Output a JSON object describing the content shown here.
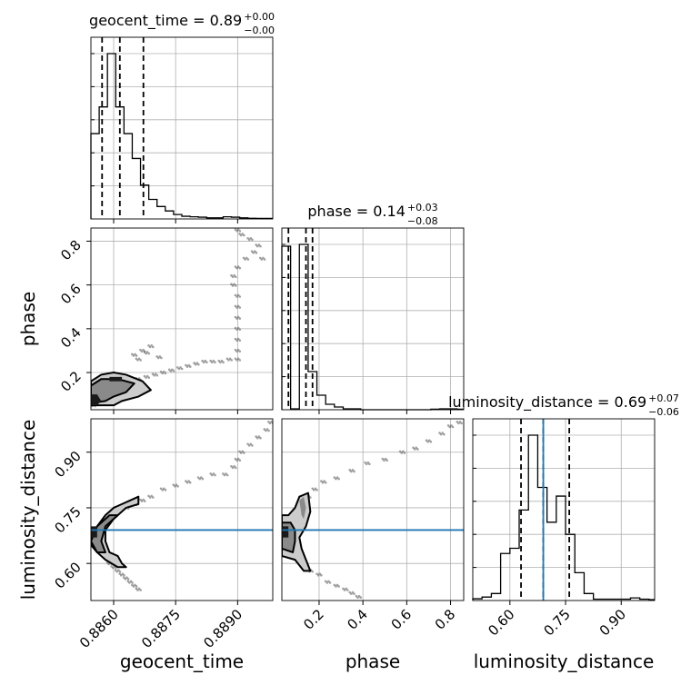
{
  "chart_data": {
    "type": "corner",
    "parameters": [
      "geocent_time",
      "phase",
      "luminosity_distance"
    ],
    "axis_labels": {
      "geocent_time": "geocent_time",
      "phase": "phase",
      "luminosity_distance": "luminosity_distance"
    },
    "titles": [
      {
        "param": "geocent_time",
        "prefix": "geocent_time = ",
        "median": "0.89",
        "upper": "+0.00",
        "lower": "−0.00"
      },
      {
        "param": "phase",
        "prefix": "phase = ",
        "median": "0.14",
        "upper": "+0.03",
        "lower": "−0.08"
      },
      {
        "param": "luminosity_distance",
        "prefix": "luminosity_distance = ",
        "median": "0.69",
        "upper": "+0.07",
        "lower": "−0.06"
      }
    ],
    "ranges": {
      "geocent_time": [
        0.88545,
        0.88985
      ],
      "phase": [
        0.03,
        0.86
      ],
      "luminosity_distance": [
        0.5,
        0.99
      ]
    },
    "ticks": {
      "geocent_time": [
        {
          "v": 0.886,
          "label": "0.8860"
        },
        {
          "v": 0.8875,
          "label": "0.8875"
        },
        {
          "v": 0.889,
          "label": "0.8890"
        }
      ],
      "phase": [
        {
          "v": 0.2,
          "label": "0.2"
        },
        {
          "v": 0.4,
          "label": "0.4"
        },
        {
          "v": 0.6,
          "label": "0.6"
        },
        {
          "v": 0.8,
          "label": "0.8"
        }
      ],
      "luminosity_distance": [
        {
          "v": 0.6,
          "label": "0.60"
        },
        {
          "v": 0.75,
          "label": "0.75"
        },
        {
          "v": 0.9,
          "label": "0.90"
        }
      ]
    },
    "quantiles": {
      "geocent_time": [
        0.88572,
        0.88615,
        0.88672
      ],
      "phase": [
        0.06,
        0.14,
        0.17
      ],
      "luminosity_distance": [
        0.63,
        0.69,
        0.76
      ]
    },
    "truth": {
      "luminosity_distance": 0.69
    },
    "histograms": {
      "geocent_time": {
        "edges": [
          0.88545,
          0.88565,
          0.88585,
          0.88605,
          0.88625,
          0.88645,
          0.88665,
          0.88685,
          0.88705,
          0.88725,
          0.88745,
          0.88765,
          0.88785,
          0.88805,
          0.88825,
          0.88845,
          0.88865,
          0.88885,
          0.88905,
          0.88925,
          0.88945,
          0.88965,
          0.88985
        ],
        "counts": [
          480,
          630,
          930,
          630,
          480,
          340,
          190,
          110,
          70,
          45,
          25,
          15,
          12,
          10,
          6,
          6,
          12,
          10,
          6,
          4,
          3,
          3
        ]
      },
      "phase": {
        "edges": [
          0.03,
          0.07,
          0.11,
          0.15,
          0.19,
          0.23,
          0.27,
          0.31,
          0.35,
          0.39,
          0.43,
          0.47,
          0.51,
          0.55,
          0.59,
          0.63,
          0.67,
          0.71,
          0.75,
          0.79,
          0.83,
          0.86
        ],
        "counts": [
          900,
          5,
          910,
          210,
          80,
          30,
          15,
          5,
          5,
          0,
          0,
          0,
          0,
          0,
          0,
          0,
          0,
          3,
          5,
          5,
          3
        ]
      },
      "luminosity_distance": {
        "edges": [
          0.5,
          0.525,
          0.55,
          0.575,
          0.6,
          0.625,
          0.65,
          0.675,
          0.7,
          0.725,
          0.75,
          0.775,
          0.8,
          0.825,
          0.85,
          0.875,
          0.9,
          0.925,
          0.95,
          0.975,
          0.99
        ],
        "counts": [
          10,
          20,
          40,
          270,
          300,
          520,
          950,
          650,
          450,
          600,
          380,
          160,
          40,
          8,
          8,
          8,
          8,
          15,
          8,
          5
        ]
      }
    },
    "scatter": {
      "geocent_time__phase": [
        [
          0.8855,
          0.05
        ],
        [
          0.8856,
          0.06
        ],
        [
          0.8857,
          0.08
        ],
        [
          0.8858,
          0.1
        ],
        [
          0.8859,
          0.12
        ],
        [
          0.886,
          0.13
        ],
        [
          0.8861,
          0.14
        ],
        [
          0.8862,
          0.15
        ],
        [
          0.8863,
          0.16
        ],
        [
          0.8864,
          0.16
        ],
        [
          0.8866,
          0.17
        ],
        [
          0.8868,
          0.18
        ],
        [
          0.887,
          0.19
        ],
        [
          0.8872,
          0.2
        ],
        [
          0.8874,
          0.21
        ],
        [
          0.8876,
          0.22
        ],
        [
          0.8878,
          0.23
        ],
        [
          0.888,
          0.24
        ],
        [
          0.8882,
          0.25
        ],
        [
          0.8884,
          0.25
        ],
        [
          0.8886,
          0.25
        ],
        [
          0.8888,
          0.26
        ],
        [
          0.889,
          0.26
        ],
        [
          0.889,
          0.3
        ],
        [
          0.889,
          0.35
        ],
        [
          0.889,
          0.4
        ],
        [
          0.889,
          0.45
        ],
        [
          0.889,
          0.5
        ],
        [
          0.889,
          0.55
        ],
        [
          0.8889,
          0.6
        ],
        [
          0.8889,
          0.64
        ],
        [
          0.889,
          0.68
        ],
        [
          0.8892,
          0.72
        ],
        [
          0.8894,
          0.75
        ],
        [
          0.8895,
          0.78
        ],
        [
          0.8893,
          0.81
        ],
        [
          0.8891,
          0.83
        ],
        [
          0.889,
          0.85
        ],
        [
          0.8896,
          0.72
        ],
        [
          0.8865,
          0.28
        ],
        [
          0.8867,
          0.3
        ],
        [
          0.8869,
          0.32
        ],
        [
          0.8868,
          0.29
        ],
        [
          0.8871,
          0.27
        ],
        [
          0.8866,
          0.26
        ]
      ],
      "geocent_time__luminosity_distance": [
        [
          0.8855,
          0.68
        ],
        [
          0.8857,
          0.66
        ],
        [
          0.8857,
          0.7
        ],
        [
          0.8859,
          0.72
        ],
        [
          0.886,
          0.73
        ],
        [
          0.8861,
          0.74
        ],
        [
          0.8863,
          0.75
        ],
        [
          0.8865,
          0.76
        ],
        [
          0.8867,
          0.77
        ],
        [
          0.8869,
          0.78
        ],
        [
          0.8872,
          0.8
        ],
        [
          0.8875,
          0.81
        ],
        [
          0.8878,
          0.82
        ],
        [
          0.8881,
          0.83
        ],
        [
          0.8884,
          0.84
        ],
        [
          0.8887,
          0.84
        ],
        [
          0.8889,
          0.86
        ],
        [
          0.889,
          0.88
        ],
        [
          0.8891,
          0.9
        ],
        [
          0.8893,
          0.92
        ],
        [
          0.8895,
          0.94
        ],
        [
          0.8897,
          0.96
        ],
        [
          0.8898,
          0.98
        ],
        [
          0.8858,
          0.62
        ],
        [
          0.8859,
          0.6
        ],
        [
          0.886,
          0.59
        ],
        [
          0.8861,
          0.58
        ],
        [
          0.8862,
          0.57
        ],
        [
          0.8863,
          0.56
        ],
        [
          0.8864,
          0.55
        ],
        [
          0.8865,
          0.54
        ],
        [
          0.8866,
          0.53
        ]
      ],
      "phase__luminosity_distance": [
        [
          0.05,
          0.66
        ],
        [
          0.07,
          0.69
        ],
        [
          0.09,
          0.72
        ],
        [
          0.11,
          0.74
        ],
        [
          0.13,
          0.76
        ],
        [
          0.15,
          0.78
        ],
        [
          0.18,
          0.8
        ],
        [
          0.22,
          0.82
        ],
        [
          0.28,
          0.83
        ],
        [
          0.35,
          0.85
        ],
        [
          0.42,
          0.87
        ],
        [
          0.5,
          0.88
        ],
        [
          0.58,
          0.9
        ],
        [
          0.64,
          0.91
        ],
        [
          0.7,
          0.93
        ],
        [
          0.76,
          0.95
        ],
        [
          0.8,
          0.97
        ],
        [
          0.84,
          0.98
        ],
        [
          0.08,
          0.62
        ],
        [
          0.12,
          0.6
        ],
        [
          0.16,
          0.58
        ],
        [
          0.2,
          0.57
        ],
        [
          0.24,
          0.55
        ],
        [
          0.28,
          0.54
        ],
        [
          0.32,
          0.53
        ],
        [
          0.35,
          0.52
        ],
        [
          0.38,
          0.51
        ]
      ]
    },
    "grid": true,
    "colors": {
      "truth_line": "#1f77b4",
      "histogram": "#000000",
      "quantile": "#000000",
      "scatter": "#555555",
      "contour_fill_outer": "#cccccc",
      "contour_fill_inner": "#8a8a8a",
      "contour_core": "#1a1a1a",
      "grid": "#b0b0b0"
    }
  }
}
